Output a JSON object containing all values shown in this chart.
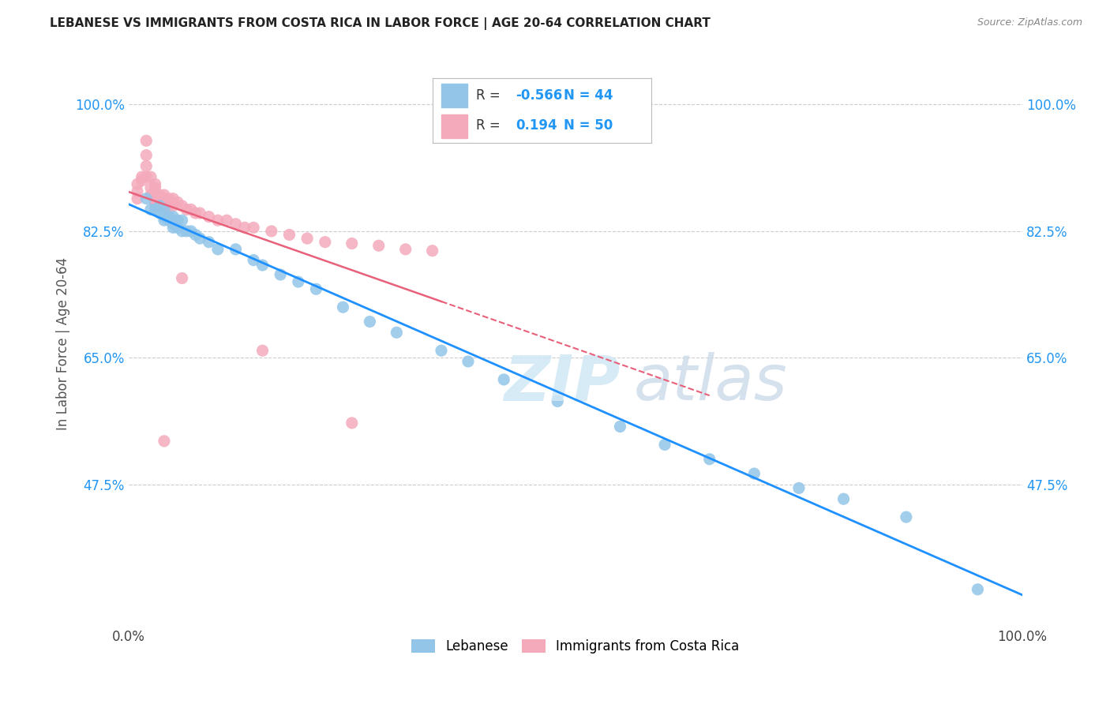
{
  "title": "LEBANESE VS IMMIGRANTS FROM COSTA RICA IN LABOR FORCE | AGE 20-64 CORRELATION CHART",
  "source": "Source: ZipAtlas.com",
  "ylabel": "In Labor Force | Age 20-64",
  "watermark_zip": "ZIP",
  "watermark_atlas": "atlas",
  "legend_blue_R": "-0.566",
  "legend_blue_N": "44",
  "legend_pink_R": "0.194",
  "legend_pink_N": "50",
  "xlim": [
    0.0,
    1.0
  ],
  "ylim": [
    0.28,
    1.06
  ],
  "yticks": [
    0.475,
    0.65,
    0.825,
    1.0
  ],
  "ytick_labels": [
    "47.5%",
    "65.0%",
    "82.5%",
    "100.0%"
  ],
  "xticks": [
    0.0,
    1.0
  ],
  "xtick_labels": [
    "0.0%",
    "100.0%"
  ],
  "blue_color": "#92C5E8",
  "pink_color": "#F4AABB",
  "blue_line_color": "#1E90FF",
  "pink_line_color": "#E8607A",
  "background_color": "#FFFFFF",
  "grid_color": "#CCCCCC",
  "blue_x": [
    0.02,
    0.025,
    0.03,
    0.035,
    0.035,
    0.04,
    0.04,
    0.04,
    0.045,
    0.045,
    0.05,
    0.05,
    0.05,
    0.055,
    0.055,
    0.06,
    0.06,
    0.065,
    0.07,
    0.075,
    0.08,
    0.09,
    0.1,
    0.12,
    0.14,
    0.15,
    0.17,
    0.19,
    0.21,
    0.24,
    0.27,
    0.3,
    0.35,
    0.38,
    0.42,
    0.48,
    0.55,
    0.6,
    0.65,
    0.7,
    0.75,
    0.8,
    0.87,
    0.95
  ],
  "blue_y": [
    0.87,
    0.855,
    0.855,
    0.86,
    0.85,
    0.855,
    0.845,
    0.84,
    0.845,
    0.84,
    0.845,
    0.835,
    0.83,
    0.84,
    0.83,
    0.84,
    0.825,
    0.825,
    0.825,
    0.82,
    0.815,
    0.81,
    0.8,
    0.8,
    0.785,
    0.778,
    0.765,
    0.755,
    0.745,
    0.72,
    0.7,
    0.685,
    0.66,
    0.645,
    0.62,
    0.59,
    0.555,
    0.53,
    0.51,
    0.49,
    0.47,
    0.455,
    0.43,
    0.33
  ],
  "pink_x": [
    0.01,
    0.01,
    0.01,
    0.015,
    0.015,
    0.02,
    0.02,
    0.02,
    0.02,
    0.025,
    0.025,
    0.025,
    0.03,
    0.03,
    0.03,
    0.03,
    0.03,
    0.035,
    0.035,
    0.04,
    0.04,
    0.04,
    0.045,
    0.045,
    0.05,
    0.05,
    0.055,
    0.06,
    0.065,
    0.07,
    0.075,
    0.08,
    0.09,
    0.1,
    0.11,
    0.12,
    0.13,
    0.14,
    0.16,
    0.18,
    0.2,
    0.22,
    0.25,
    0.28,
    0.31,
    0.34,
    0.25,
    0.15,
    0.06,
    0.04
  ],
  "pink_y": [
    0.89,
    0.88,
    0.87,
    0.9,
    0.895,
    0.95,
    0.93,
    0.915,
    0.9,
    0.9,
    0.885,
    0.875,
    0.89,
    0.885,
    0.875,
    0.865,
    0.86,
    0.875,
    0.865,
    0.875,
    0.87,
    0.86,
    0.87,
    0.86,
    0.87,
    0.86,
    0.865,
    0.86,
    0.855,
    0.855,
    0.85,
    0.85,
    0.845,
    0.84,
    0.84,
    0.835,
    0.83,
    0.83,
    0.825,
    0.82,
    0.815,
    0.81,
    0.808,
    0.805,
    0.8,
    0.798,
    0.56,
    0.66,
    0.76,
    0.535
  ]
}
